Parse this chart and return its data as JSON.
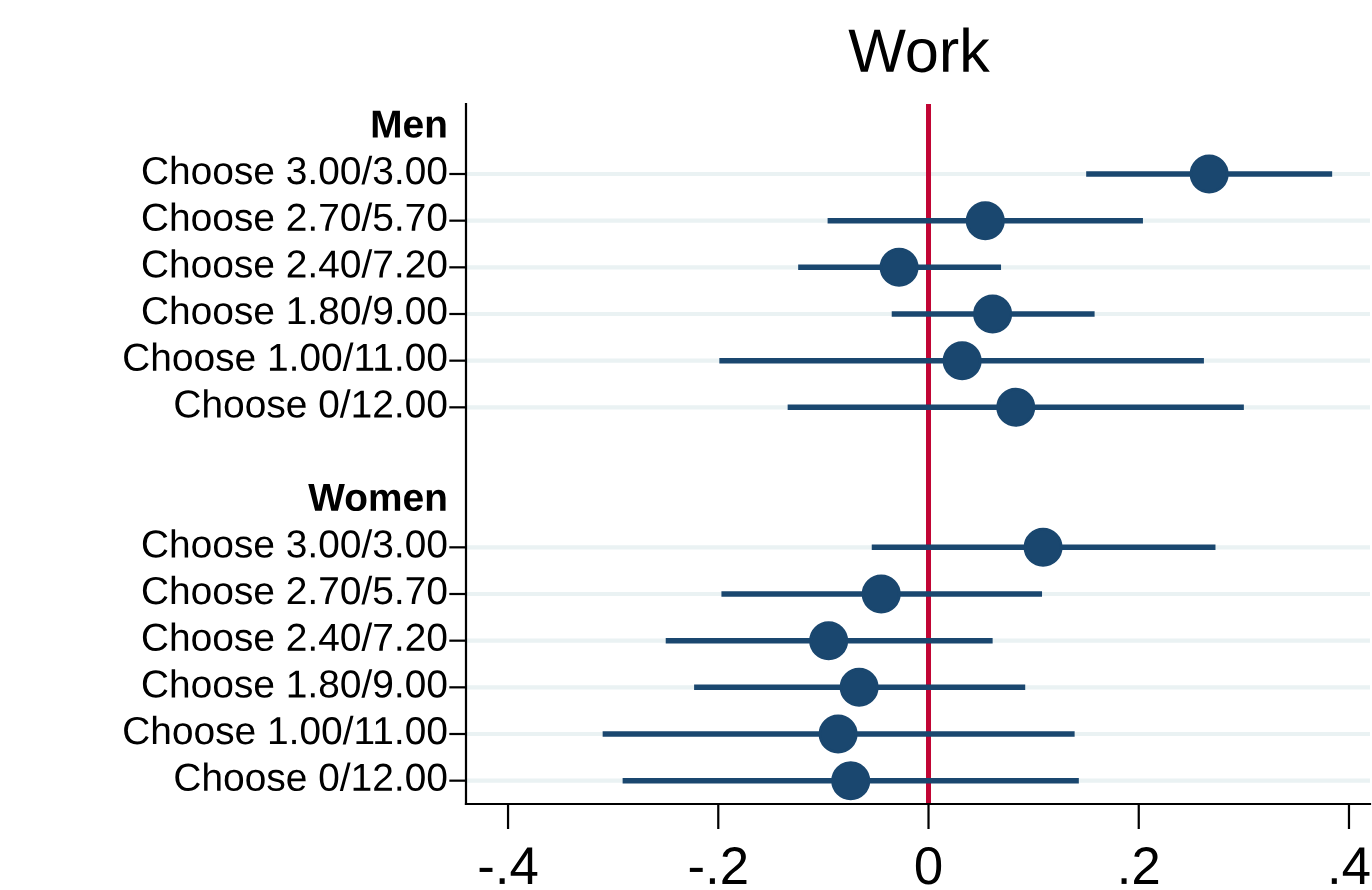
{
  "chart_data": {
    "type": "scatter",
    "orientation": "horizontal",
    "title": "Work",
    "categories": [
      "Men",
      "Choose 3.00/3.00",
      "Choose 2.70/5.70",
      "Choose 2.40/7.20",
      "Choose 1.80/9.00",
      "Choose 1.00/11.00",
      "Choose 0/12.00",
      null,
      "Women",
      "Choose 3.00/3.00",
      "Choose 2.70/5.70",
      "Choose 2.40/7.20",
      "Choose 1.80/9.00",
      "Choose 1.00/11.00",
      "Choose 0/12.00"
    ],
    "series": [
      {
        "color": "#1a476f",
        "values": [
          null,
          0.267,
          0.054,
          -0.028,
          0.061,
          0.032,
          0.083,
          null,
          null,
          0.109,
          -0.045,
          -0.095,
          -0.066,
          -0.086,
          -0.074
        ],
        "errors": [
          null,
          [
            0.15,
            0.384
          ],
          [
            -0.096,
            0.204
          ],
          [
            -0.124,
            0.069
          ],
          [
            -0.035,
            0.158
          ],
          [
            -0.199,
            0.262
          ],
          [
            -0.134,
            0.3
          ],
          null,
          null,
          [
            -0.054,
            0.273
          ],
          [
            -0.197,
            0.108
          ],
          [
            -0.25,
            0.061
          ],
          [
            -0.223,
            0.092
          ],
          [
            -0.31,
            0.139
          ],
          [
            -0.291,
            0.143
          ]
        ]
      }
    ],
    "xlim": [
      -0.44,
      0.42
    ],
    "xticks": [
      {
        "value": -0.4,
        "label": "-.4"
      },
      {
        "value": -0.2,
        "label": "-.2"
      },
      0,
      {
        "value": 0.2,
        "label": ".2"
      },
      {
        "value": 0.4,
        "label": ".4"
      }
    ],
    "ref_lines": [
      {
        "axis": "x",
        "value": 0,
        "color": "#c10534",
        "line_style": "solid"
      }
    ],
    "grid": "y",
    "marker": "circle"
  }
}
